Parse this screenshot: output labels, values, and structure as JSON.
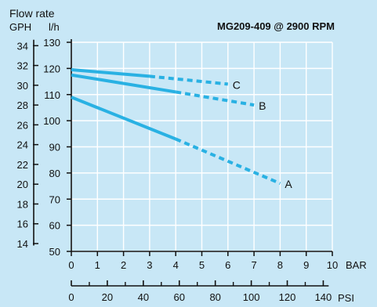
{
  "chart_data": {
    "type": "line",
    "title": "MG209-409 @ 2900 RPM",
    "y_header": "Flow rate",
    "y_left_unit": "GPH",
    "y_right_unit": "l/h",
    "x_primary_unit": "BAR",
    "x_secondary_unit": "PSI",
    "x_primary_ticks": [
      0,
      1,
      2,
      3,
      4,
      5,
      6,
      7,
      8,
      9,
      10
    ],
    "x_secondary_ticks": [
      0,
      20,
      40,
      60,
      80,
      100,
      120,
      140
    ],
    "x_secondary_minor": [
      10,
      30,
      50,
      70,
      90,
      110,
      130
    ],
    "y_lh_ticks": [
      50,
      60,
      70,
      80,
      90,
      100,
      110,
      120,
      130
    ],
    "y_gph_ticks": [
      14,
      16,
      18,
      20,
      22,
      24,
      26,
      28,
      30,
      32,
      34
    ],
    "xlim": [
      0,
      10
    ],
    "ylim": [
      50,
      130
    ],
    "grid": true,
    "series": [
      {
        "name": "C",
        "solid": [
          [
            0,
            119.5
          ],
          [
            3,
            117
          ]
        ],
        "dashed": [
          [
            3,
            117
          ],
          [
            6,
            114
          ]
        ]
      },
      {
        "name": "B",
        "solid": [
          [
            0,
            117.5
          ],
          [
            4,
            111
          ]
        ],
        "dashed": [
          [
            4,
            111
          ],
          [
            7,
            106
          ]
        ]
      },
      {
        "name": "A",
        "solid": [
          [
            0,
            109
          ],
          [
            4,
            93
          ]
        ],
        "dashed": [
          [
            4,
            93
          ],
          [
            8,
            76
          ]
        ]
      }
    ],
    "colors": {
      "series": "#29b1e3",
      "background": "#c8e7f6",
      "grid": "#ffffff",
      "text": "#111111"
    }
  }
}
